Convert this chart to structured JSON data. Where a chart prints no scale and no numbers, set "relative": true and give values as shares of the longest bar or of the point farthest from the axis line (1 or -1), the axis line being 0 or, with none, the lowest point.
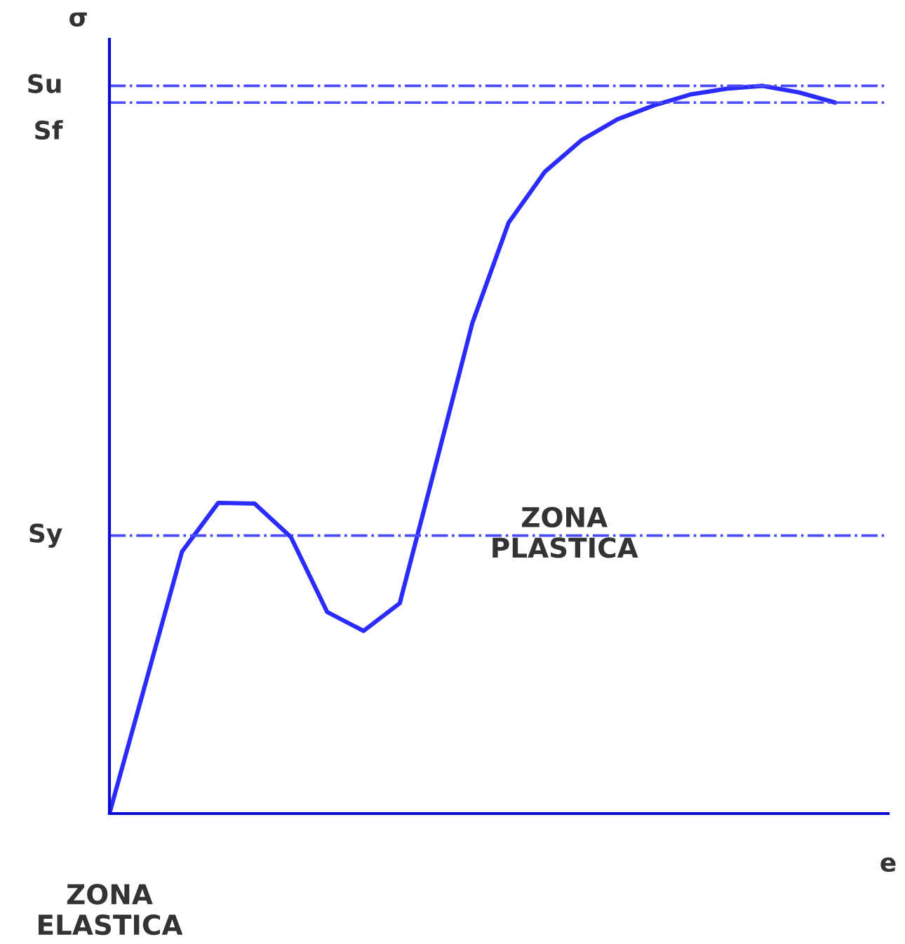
{
  "chart_data": {
    "type": "line",
    "relative": true,
    "xlabel": "e",
    "ylabel": "σ",
    "categories": [
      null,
      null,
      null,
      null,
      null,
      null,
      null,
      null,
      null,
      null,
      null,
      null,
      null,
      null,
      null,
      null,
      null,
      null,
      null,
      null,
      null
    ],
    "series": [
      {
        "color": "#2b2bff",
        "values": [
          0,
          0.18,
          0.36,
          0.427,
          0.426,
          0.38,
          0.277,
          0.251,
          0.289,
          0.481,
          0.674,
          0.812,
          0.882,
          0.925,
          0.954,
          0.973,
          0.988,
          0.996,
          1.0,
          0.991,
          0.977
        ]
      }
    ],
    "ref_lines": [
      {
        "axis": "y",
        "value": 1.0,
        "label": "Su",
        "color": "#4a4aff",
        "line_style": "dashdot"
      },
      {
        "axis": "y",
        "value": 0.977,
        "label": "Sf",
        "color": "#4a4aff",
        "line_style": "dashdot"
      },
      {
        "axis": "y",
        "value": 0.382,
        "label": "Sy",
        "color": "#4a4aff",
        "line_style": "dashdot"
      }
    ],
    "annotations": [
      "ZONA\nPLASTICA",
      "ZONA\nELASTICA"
    ]
  }
}
